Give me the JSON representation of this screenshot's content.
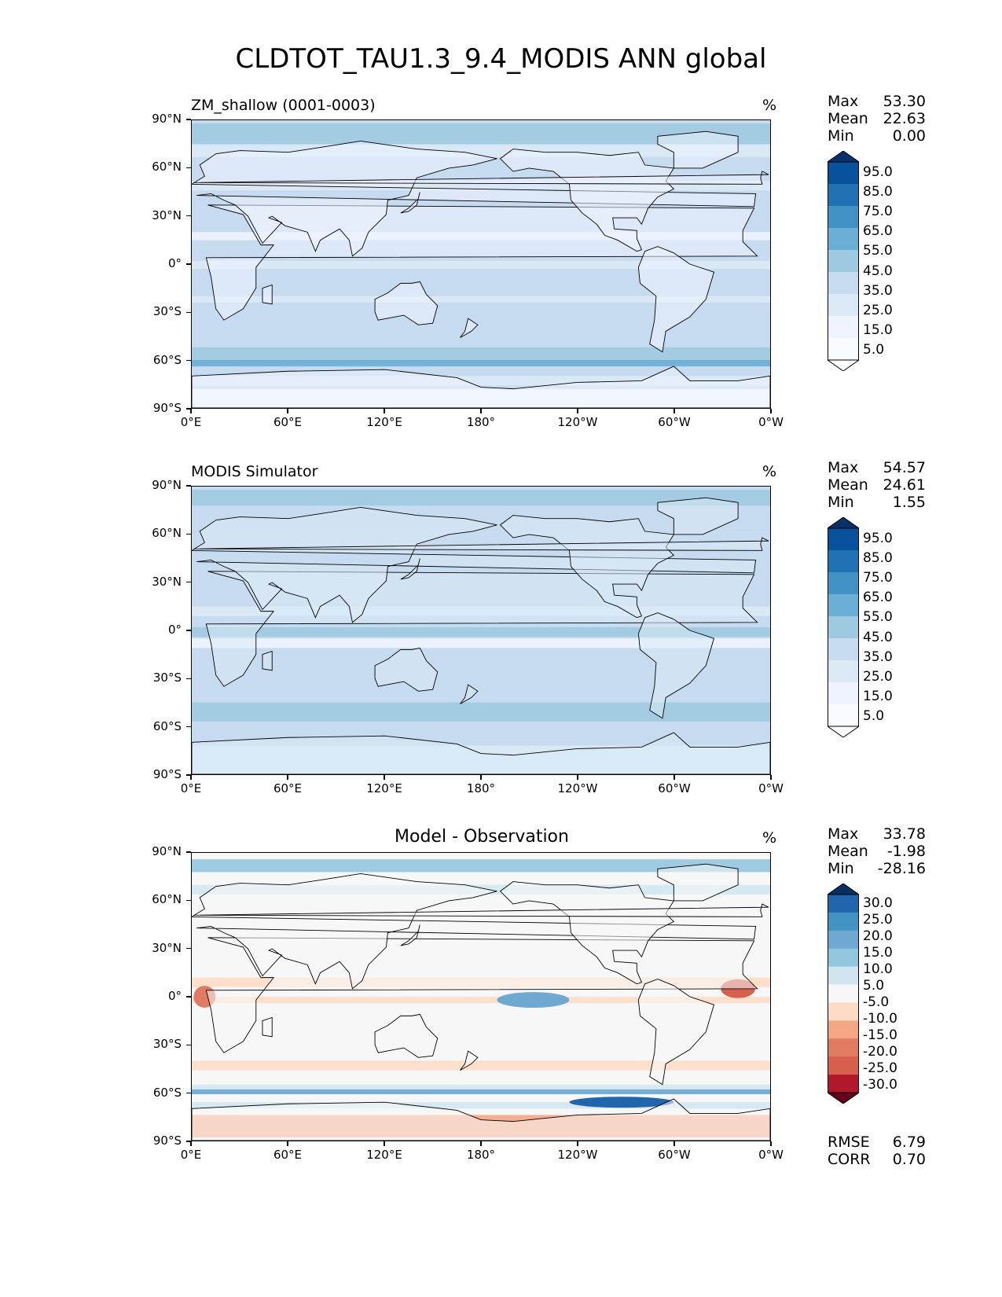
{
  "title": "CLDTOT_TAU1.3_9.4_MODIS ANN global",
  "lat_ticks": [
    "90°N",
    "60°N",
    "30°N",
    "0°",
    "30°S",
    "60°S",
    "90°S"
  ],
  "lon_ticks": [
    "0°E",
    "60°E",
    "120°E",
    "180°",
    "120°W",
    "60°W",
    "0°W"
  ],
  "panels": [
    {
      "title": "ZM_shallow (0001-0003)",
      "units": "%",
      "stats": {
        "max_label": "Max",
        "max": "53.30",
        "mean_label": "Mean",
        "mean": "22.63",
        "min_label": "Min",
        "min": "0.00"
      },
      "colorbar": {
        "labels": [
          "95.0",
          "85.0",
          "75.0",
          "65.0",
          "55.0",
          "45.0",
          "35.0",
          "25.0",
          "15.0",
          "5.0"
        ],
        "colors": [
          "#08306b",
          "#08519c",
          "#2171b5",
          "#4292c6",
          "#6baed6",
          "#9ecae1",
          "#c6dbef",
          "#dbe9f6",
          "#eff3ff",
          "#f7fbff",
          "#ffffff"
        ]
      }
    },
    {
      "title": "MODIS Simulator",
      "units": "%",
      "stats": {
        "max_label": "Max",
        "max": "54.57",
        "mean_label": "Mean",
        "mean": "24.61",
        "min_label": "Min",
        "min": "1.55"
      },
      "colorbar": {
        "labels": [
          "95.0",
          "85.0",
          "75.0",
          "65.0",
          "55.0",
          "45.0",
          "35.0",
          "25.0",
          "15.0",
          "5.0"
        ],
        "colors": [
          "#08306b",
          "#08519c",
          "#2171b5",
          "#4292c6",
          "#6baed6",
          "#9ecae1",
          "#c6dbef",
          "#dbe9f6",
          "#eff3ff",
          "#f7fbff",
          "#ffffff"
        ]
      }
    },
    {
      "title": "Model - Observation",
      "units": "%",
      "stats": {
        "max_label": "Max",
        "max": "33.78",
        "mean_label": "Mean",
        "mean": "-1.98",
        "min_label": "Min",
        "min": "-28.16"
      },
      "extra_stats": {
        "rmse_label": "RMSE",
        "rmse": "6.79",
        "corr_label": "CORR",
        "corr": "0.70"
      },
      "colorbar": {
        "labels": [
          "30.0",
          "25.0",
          "20.0",
          "15.0",
          "10.0",
          "5.0",
          "-5.0",
          "-10.0",
          "-15.0",
          "-20.0",
          "-25.0",
          "-30.0"
        ],
        "colors": [
          "#053061",
          "#2166ac",
          "#4393c3",
          "#6fa8d0",
          "#92c5de",
          "#d1e5f0",
          "#f7f7f7",
          "#fddbc7",
          "#f4a582",
          "#e07b62",
          "#d6604d",
          "#b2182b",
          "#67001f"
        ]
      }
    }
  ]
}
